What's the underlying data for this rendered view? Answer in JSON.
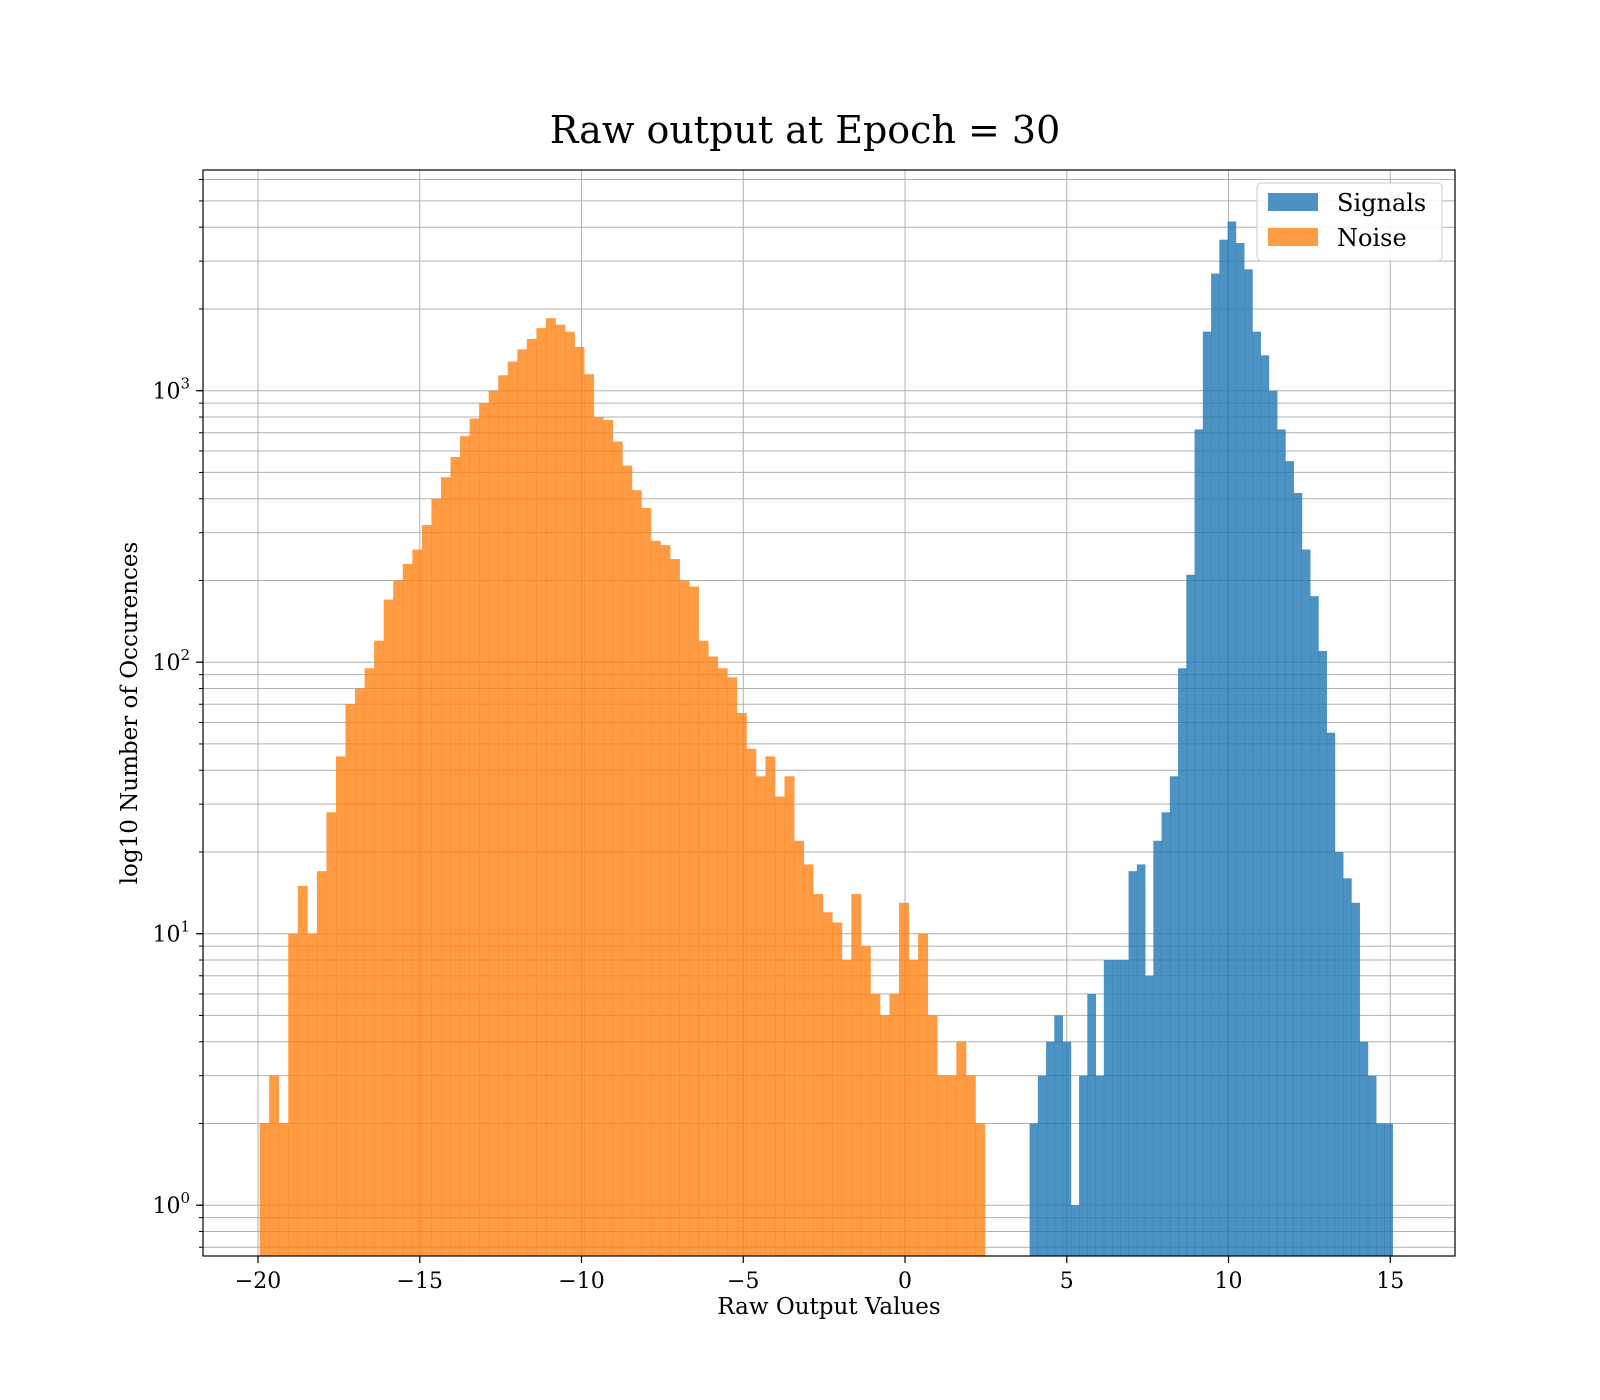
{
  "chart_data": {
    "type": "bar",
    "title": "Raw output at Epoch = 30",
    "xlabel": "Raw Output Values",
    "ylabel": "log10 Number of Occurences",
    "yscale": "log",
    "xlim": [
      -21.7,
      17.0
    ],
    "ylim": [
      0.65,
      6500
    ],
    "grid": true,
    "legend_position": "top-right",
    "x_ticks": [
      -20,
      -15,
      -10,
      -5,
      0,
      5,
      10,
      15
    ],
    "x_tick_labels": [
      "−20",
      "−15",
      "−10",
      "−5",
      "0",
      "5",
      "10",
      "15"
    ],
    "y_ticks": [
      1,
      10,
      100,
      1000
    ],
    "y_tick_exponents": [
      "0",
      "1",
      "2",
      "3"
    ],
    "y_tick_base": "10",
    "series": [
      {
        "name": "Noise",
        "color": "#ff7f0e",
        "opacity": 0.78,
        "bin_start": -19.95,
        "bin_width": 0.295,
        "values": [
          2,
          3,
          2,
          10,
          15,
          10,
          17,
          28,
          45,
          70,
          80,
          95,
          120,
          170,
          200,
          230,
          260,
          320,
          400,
          480,
          570,
          680,
          790,
          900,
          1000,
          1140,
          1280,
          1420,
          1550,
          1700,
          1850,
          1750,
          1650,
          1450,
          1150,
          800,
          780,
          650,
          530,
          430,
          370,
          280,
          270,
          240,
          200,
          190,
          120,
          105,
          95,
          88,
          65,
          48,
          38,
          45,
          32,
          38,
          22,
          18,
          14,
          12,
          11,
          8,
          14,
          9,
          6,
          5,
          6,
          13,
          8,
          10,
          5,
          3,
          3,
          4,
          3,
          2
        ]
      },
      {
        "name": "Signals",
        "color": "#1f77b4",
        "opacity": 0.8,
        "bin_start": 3.85,
        "bin_width": 0.255,
        "values": [
          2,
          3,
          4,
          5,
          4,
          1,
          3,
          6,
          3,
          8,
          8,
          8,
          17,
          18,
          7,
          22,
          28,
          38,
          95,
          210,
          720,
          1650,
          2700,
          3600,
          4200,
          3500,
          2800,
          1650,
          1350,
          1000,
          720,
          550,
          420,
          260,
          175,
          110,
          55,
          20,
          16,
          13,
          4,
          3,
          2,
          2
        ]
      }
    ]
  }
}
